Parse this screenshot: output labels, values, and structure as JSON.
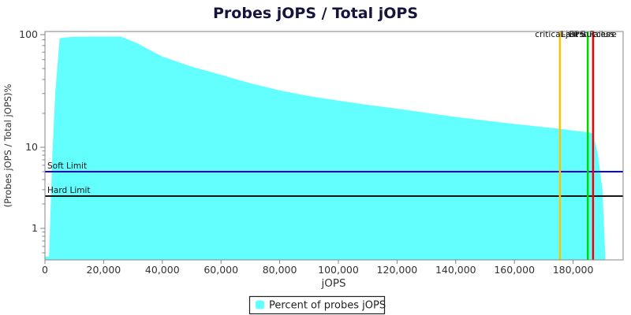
{
  "title": "Probes jOPS / Total jOPS",
  "chart_data": {
    "type": "area",
    "title": "Probes jOPS / Total jOPS",
    "xlabel": "jOPS",
    "ylabel": "(Probes jOPS / Total jOPS)%",
    "y_scale": "log",
    "grid": "off",
    "xlim": [
      0,
      197000
    ],
    "ylim": [
      0.41,
      106
    ],
    "x_ticks": [
      0,
      20000,
      40000,
      60000,
      80000,
      100000,
      120000,
      140000,
      160000,
      180000
    ],
    "x_tick_labels": [
      "0",
      "20,000",
      "40,000",
      "60,000",
      "80,000",
      "100,000",
      "120,000",
      "140,000",
      "160,000",
      "180,000"
    ],
    "y_ticks": [
      100,
      10,
      1
    ],
    "y_tick_labels": [
      "100",
      "10",
      "1"
    ],
    "y_minor_ticks": [
      90,
      80,
      70,
      60,
      50,
      40,
      30,
      20,
      9,
      8,
      7,
      6,
      5,
      4,
      3,
      2,
      0.9,
      0.8,
      0.7,
      0.6,
      0.5
    ],
    "series": [
      {
        "name": "Percent of probes jOPS",
        "color": "#63ffff",
        "points": [
          [
            0,
            0.45
          ],
          [
            1400,
            0.45
          ],
          [
            2500,
            8
          ],
          [
            3500,
            30
          ],
          [
            5000,
            93
          ],
          [
            9000,
            95.5
          ],
          [
            15000,
            96
          ],
          [
            26000,
            96
          ],
          [
            31000,
            85
          ],
          [
            40000,
            64
          ],
          [
            50000,
            52
          ],
          [
            60000,
            44
          ],
          [
            70000,
            37
          ],
          [
            80000,
            32
          ],
          [
            90000,
            28.5
          ],
          [
            100000,
            26
          ],
          [
            110000,
            23.8
          ],
          [
            120000,
            22
          ],
          [
            130000,
            20.2
          ],
          [
            140000,
            18.6
          ],
          [
            150000,
            17.3
          ],
          [
            160000,
            16.1
          ],
          [
            170000,
            15.1
          ],
          [
            175500,
            14.6
          ],
          [
            180000,
            14.1
          ],
          [
            185000,
            13.6
          ],
          [
            186800,
            13.3
          ],
          [
            188500,
            8
          ],
          [
            190000,
            3
          ],
          [
            191000,
            0.45
          ]
        ]
      }
    ],
    "limit_lines": [
      {
        "label": "Soft Limit",
        "value": 5,
        "color": "#0000e0"
      },
      {
        "label": "Hard Limit",
        "value": 2.5,
        "color": "#161616"
      }
    ],
    "marker_lines": [
      {
        "label": "critical-jOPS",
        "value": 175500,
        "color": "#ffc400"
      },
      {
        "label": "Last Success",
        "value": 185000,
        "color": "#00d600"
      },
      {
        "label": "First Failure",
        "value": 186800,
        "color": "#f50000"
      }
    ],
    "legend": {
      "position": "bottom",
      "entries": [
        {
          "label": "Percent of probes jOPS",
          "color": "#63ffff"
        }
      ]
    },
    "colors": {
      "plot_border": "#858585",
      "tick": "#858585",
      "background": "#ffffff",
      "title": "#14143f"
    }
  }
}
